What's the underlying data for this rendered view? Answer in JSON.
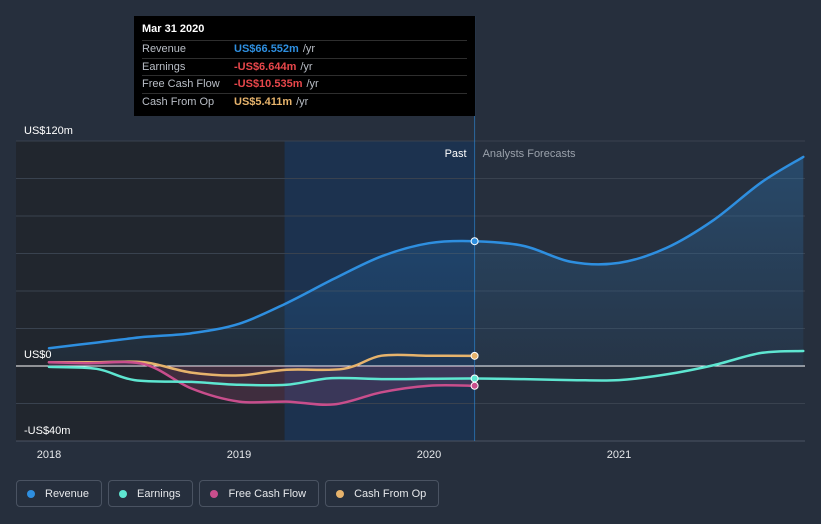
{
  "tooltip": {
    "date": "Mar 31 2020",
    "rows": [
      {
        "label": "Revenue",
        "value": "US$66.552m",
        "unit": "/yr",
        "color": "#2e8fe0"
      },
      {
        "label": "Earnings",
        "value": "-US$6.644m",
        "unit": "/yr",
        "color": "#e8474b"
      },
      {
        "label": "Free Cash Flow",
        "value": "-US$10.535m",
        "unit": "/yr",
        "color": "#e8474b"
      },
      {
        "label": "Cash From Op",
        "value": "US$5.411m",
        "unit": "/yr",
        "color": "#e6b36c"
      }
    ]
  },
  "legend": [
    {
      "label": "Revenue",
      "color": "#2e8fe0"
    },
    {
      "label": "Earnings",
      "color": "#5ee6d1"
    },
    {
      "label": "Free Cash Flow",
      "color": "#c84e8c"
    },
    {
      "label": "Cash From Op",
      "color": "#e6b36c"
    }
  ],
  "chart_data": {
    "type": "line",
    "xlim": [
      2017.95,
      2021.97
    ],
    "ylim": [
      -40,
      120
    ],
    "y_tick_labels": [
      {
        "value": 120,
        "label": "US$120m"
      },
      {
        "value": 0,
        "label": "US$0"
      },
      {
        "value": -40,
        "label": "-US$40m"
      }
    ],
    "x_ticks": [
      {
        "value": 2018.0,
        "label": "2018"
      },
      {
        "value": 2019.0,
        "label": "2019"
      },
      {
        "value": 2020.0,
        "label": "2020"
      },
      {
        "value": 2021.0,
        "label": "2021"
      }
    ],
    "past_label": "Past",
    "forecast_label": "Analysts Forecasts",
    "divider_x": 2020.24,
    "highlight_start_x": 2019.24,
    "series": [
      {
        "name": "Revenue",
        "color": "#2e8fe0",
        "x": [
          2018.0,
          2018.25,
          2018.5,
          2018.75,
          2019.0,
          2019.25,
          2019.5,
          2019.75,
          2020.0,
          2020.24,
          2020.5,
          2020.75,
          2021.0,
          2021.25,
          2021.5,
          2021.75,
          2021.97
        ],
        "y": [
          9.5,
          12.5,
          15.5,
          17.5,
          22.5,
          33.5,
          46.5,
          58.5,
          65.5,
          66.552,
          64.0,
          55.5,
          55.0,
          63.0,
          78.0,
          98.0,
          111.5
        ]
      },
      {
        "name": "Earnings",
        "color": "#5ee6d1",
        "x": [
          2018.0,
          2018.25,
          2018.45,
          2018.75,
          2019.0,
          2019.25,
          2019.48,
          2019.75,
          2020.0,
          2020.24,
          2020.5,
          2020.75,
          2021.0,
          2021.25,
          2021.5,
          2021.75,
          2021.97
        ],
        "y": [
          -0.5,
          -1.5,
          -7.5,
          -8.5,
          -10.0,
          -10.0,
          -6.5,
          -7.0,
          -6.8,
          -6.644,
          -7.0,
          -7.5,
          -7.5,
          -4.5,
          0.5,
          7.0,
          8.0
        ]
      },
      {
        "name": "Free Cash Flow",
        "color": "#c84e8c",
        "x": [
          2018.0,
          2018.2,
          2018.5,
          2018.75,
          2019.0,
          2019.25,
          2019.5,
          2019.75,
          2020.0,
          2020.24
        ],
        "y": [
          2.0,
          1.5,
          1.0,
          -12.0,
          -19.0,
          -19.0,
          -20.5,
          -14.0,
          -10.5,
          -10.535
        ]
      },
      {
        "name": "Cash From Op",
        "color": "#e6b36c",
        "x": [
          2018.0,
          2018.25,
          2018.5,
          2018.75,
          2019.0,
          2019.25,
          2019.55,
          2019.75,
          2020.0,
          2020.24
        ],
        "y": [
          2.0,
          2.0,
          2.0,
          -3.5,
          -5.0,
          -2.0,
          -1.5,
          5.5,
          5.5,
          5.411
        ]
      }
    ]
  }
}
